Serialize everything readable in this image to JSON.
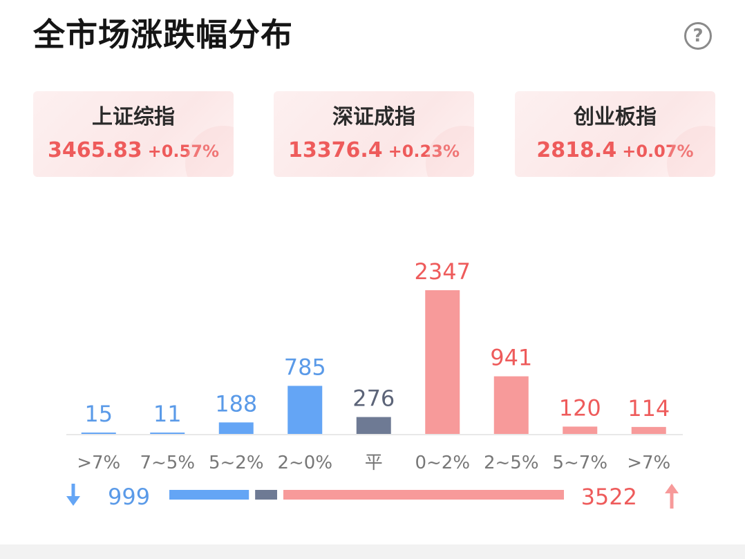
{
  "header": {
    "title": "全市场涨跌幅分布",
    "help_icon": "question-circle-icon"
  },
  "indices": [
    {
      "name": "上证综指",
      "value": "3465.83",
      "change": "+0.57%"
    },
    {
      "name": "深证成指",
      "value": "13376.4",
      "change": "+0.23%"
    },
    {
      "name": "创业板指",
      "value": "2818.4",
      "change": "+0.07%"
    }
  ],
  "colors": {
    "down": "#64a5f5",
    "flat": "#6e7a94",
    "up": "#f79a9a",
    "up_text": "#ee5b5b",
    "down_text": "#5a9ae8",
    "flat_text": "#5c6478"
  },
  "chart_data": {
    "type": "bar",
    "categories": [
      ">7%",
      "7~5%",
      "5~2%",
      "2~0%",
      "平",
      "0~2%",
      "2~5%",
      "5~7%",
      ">7%"
    ],
    "values": [
      15,
      11,
      188,
      785,
      276,
      2347,
      941,
      120,
      114
    ],
    "groups": [
      "down",
      "down",
      "down",
      "down",
      "flat",
      "up",
      "up",
      "up",
      "up"
    ],
    "ylim": [
      0,
      2347
    ],
    "legend": "none",
    "grid": false
  },
  "summary": {
    "down_count": "999",
    "up_count": "3522",
    "down_icon": "arrow-down-icon",
    "up_icon": "arrow-up-icon"
  }
}
